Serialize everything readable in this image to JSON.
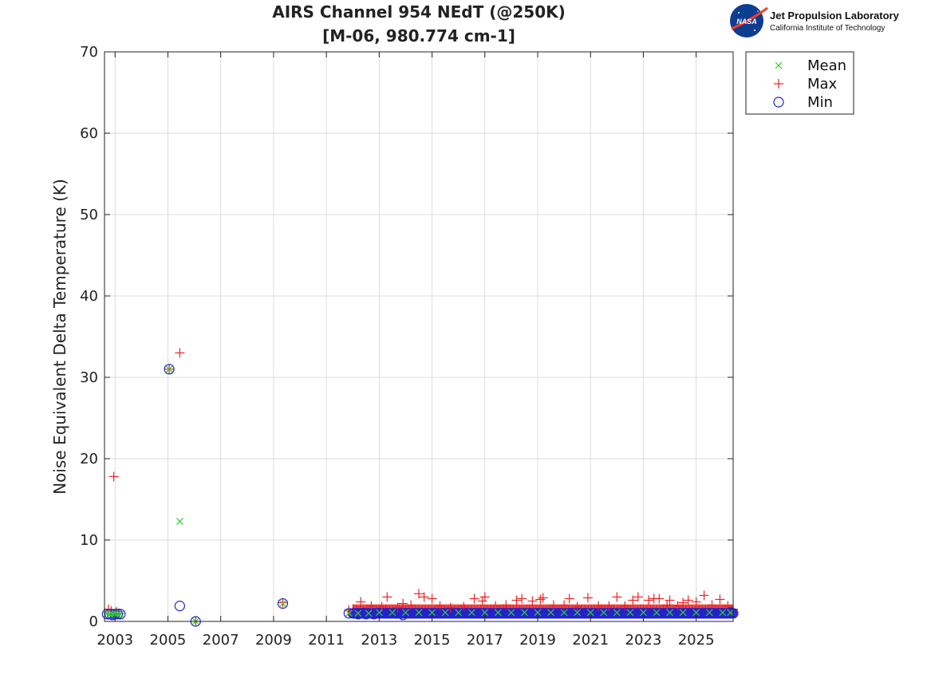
{
  "logo": {
    "nasa_mark": "NASA",
    "title": "Jet Propulsion Laboratory",
    "subtitle": "California Institute of Technology"
  },
  "chart_data": {
    "type": "scatter",
    "title": "AIRS Channel 954 NEdT (@250K)",
    "subtitle": "[M-06, 980.774 cm-1]",
    "xlabel": "",
    "ylabel": "Noise Equivalent Delta Temperature (K)",
    "xlim": [
      2002.6,
      2026.4
    ],
    "ylim": [
      0,
      70
    ],
    "xticks": [
      2003,
      2005,
      2007,
      2009,
      2011,
      2013,
      2015,
      2017,
      2019,
      2021,
      2023,
      2025
    ],
    "yticks": [
      0,
      10,
      20,
      30,
      40,
      50,
      60,
      70
    ],
    "grid": true,
    "legend_position": "outside-top-right",
    "series": [
      {
        "name": "Mean",
        "marker": "x",
        "color": "#33cc33",
        "points": [
          [
            2002.7,
            1.0
          ],
          [
            2002.8,
            0.9
          ],
          [
            2002.9,
            0.9
          ],
          [
            2003.0,
            1.0
          ],
          [
            2003.1,
            0.9
          ],
          [
            2003.2,
            0.9
          ],
          [
            2005.05,
            31.0
          ],
          [
            2005.45,
            12.3
          ],
          [
            2006.05,
            0.0
          ],
          [
            2009.35,
            2.2
          ],
          [
            2011.85,
            1.0
          ],
          [
            2012.2,
            1.0
          ],
          [
            2012.6,
            1.0
          ],
          [
            2013.0,
            1.1
          ],
          [
            2013.5,
            1.1
          ],
          [
            2014.0,
            1.1
          ],
          [
            2014.5,
            1.1
          ],
          [
            2015.0,
            1.1
          ],
          [
            2015.5,
            1.1
          ],
          [
            2016.0,
            1.1
          ],
          [
            2016.5,
            1.1
          ],
          [
            2017.0,
            1.1
          ],
          [
            2017.5,
            1.1
          ],
          [
            2018.0,
            1.1
          ],
          [
            2018.5,
            1.1
          ],
          [
            2019.0,
            1.1
          ],
          [
            2019.5,
            1.1
          ],
          [
            2020.0,
            1.1
          ],
          [
            2020.5,
            1.1
          ],
          [
            2021.0,
            1.1
          ],
          [
            2021.5,
            1.1
          ],
          [
            2022.0,
            1.1
          ],
          [
            2022.5,
            1.1
          ],
          [
            2023.0,
            1.1
          ],
          [
            2023.5,
            1.1
          ],
          [
            2024.0,
            1.1
          ],
          [
            2024.5,
            1.1
          ],
          [
            2025.0,
            1.1
          ],
          [
            2025.5,
            1.1
          ],
          [
            2026.0,
            1.1
          ],
          [
            2026.3,
            1.1
          ]
        ]
      },
      {
        "name": "Max",
        "marker": "+",
        "color": "#ee2222",
        "points": [
          [
            2002.75,
            1.5
          ],
          [
            2002.85,
            1.3
          ],
          [
            2002.95,
            17.8
          ],
          [
            2003.05,
            1.2
          ],
          [
            2003.15,
            1.0
          ],
          [
            2005.05,
            31.0
          ],
          [
            2005.45,
            33.0
          ],
          [
            2006.05,
            0.0
          ],
          [
            2009.35,
            2.3
          ],
          [
            2011.85,
            1.4
          ],
          [
            2012.3,
            2.4
          ],
          [
            2012.7,
            1.9
          ],
          [
            2013.1,
            1.8
          ],
          [
            2013.3,
            3.0
          ],
          [
            2013.7,
            1.7
          ],
          [
            2013.9,
            2.2
          ],
          [
            2014.2,
            2.0
          ],
          [
            2014.5,
            3.4
          ],
          [
            2014.7,
            3.0
          ],
          [
            2015.0,
            2.8
          ],
          [
            2015.3,
            1.9
          ],
          [
            2015.7,
            1.7
          ],
          [
            2016.2,
            1.8
          ],
          [
            2016.6,
            2.8
          ],
          [
            2016.9,
            2.5
          ],
          [
            2017.0,
            3.0
          ],
          [
            2017.4,
            1.9
          ],
          [
            2017.8,
            2.0
          ],
          [
            2018.2,
            2.6
          ],
          [
            2018.4,
            2.8
          ],
          [
            2018.8,
            2.5
          ],
          [
            2019.1,
            2.7
          ],
          [
            2019.2,
            2.9
          ],
          [
            2019.6,
            2.0
          ],
          [
            2020.0,
            2.0
          ],
          [
            2020.2,
            2.8
          ],
          [
            2020.5,
            1.8
          ],
          [
            2020.9,
            2.9
          ],
          [
            2021.3,
            1.9
          ],
          [
            2021.7,
            1.9
          ],
          [
            2022.0,
            3.0
          ],
          [
            2022.3,
            1.9
          ],
          [
            2022.6,
            2.6
          ],
          [
            2022.8,
            3.0
          ],
          [
            2023.2,
            2.6
          ],
          [
            2023.4,
            2.8
          ],
          [
            2023.6,
            2.8
          ],
          [
            2023.9,
            2.0
          ],
          [
            2024.0,
            2.6
          ],
          [
            2024.3,
            1.9
          ],
          [
            2024.5,
            2.3
          ],
          [
            2024.7,
            2.6
          ],
          [
            2025.0,
            2.4
          ],
          [
            2025.3,
            3.2
          ],
          [
            2025.6,
            2.0
          ],
          [
            2025.9,
            2.7
          ],
          [
            2026.2,
            1.9
          ]
        ]
      },
      {
        "name": "Min",
        "marker": "o",
        "color": "#2222cc",
        "points": [
          [
            2002.7,
            0.9
          ],
          [
            2002.8,
            0.9
          ],
          [
            2002.9,
            0.8
          ],
          [
            2003.0,
            0.9
          ],
          [
            2003.1,
            0.9
          ],
          [
            2003.2,
            0.9
          ],
          [
            2005.05,
            31.0
          ],
          [
            2005.45,
            1.9
          ],
          [
            2006.05,
            0.0
          ],
          [
            2009.35,
            2.2
          ],
          [
            2011.85,
            1.0
          ],
          [
            2012.2,
            0.9
          ],
          [
            2012.5,
            0.9
          ],
          [
            2012.8,
            0.9
          ],
          [
            2013.0,
            1.0
          ],
          [
            2013.3,
            1.0
          ],
          [
            2013.6,
            1.0
          ],
          [
            2013.9,
            0.8
          ],
          [
            2014.2,
            1.0
          ],
          [
            2014.5,
            1.0
          ],
          [
            2014.8,
            1.0
          ],
          [
            2015.1,
            1.0
          ],
          [
            2015.4,
            1.0
          ],
          [
            2015.7,
            1.0
          ],
          [
            2016.0,
            1.0
          ],
          [
            2016.3,
            1.0
          ],
          [
            2016.6,
            1.0
          ],
          [
            2016.9,
            1.0
          ],
          [
            2017.2,
            1.0
          ],
          [
            2017.5,
            1.0
          ],
          [
            2017.8,
            1.0
          ],
          [
            2018.1,
            1.0
          ],
          [
            2018.4,
            1.0
          ],
          [
            2018.7,
            1.0
          ],
          [
            2019.0,
            1.0
          ],
          [
            2019.3,
            1.0
          ],
          [
            2019.6,
            1.0
          ],
          [
            2019.9,
            1.0
          ],
          [
            2020.2,
            1.0
          ],
          [
            2020.5,
            1.0
          ],
          [
            2020.8,
            1.0
          ],
          [
            2021.1,
            1.0
          ],
          [
            2021.4,
            1.0
          ],
          [
            2021.7,
            1.0
          ],
          [
            2022.0,
            1.0
          ],
          [
            2022.3,
            1.0
          ],
          [
            2022.6,
            1.0
          ],
          [
            2022.9,
            1.0
          ],
          [
            2023.2,
            1.0
          ],
          [
            2023.5,
            1.0
          ],
          [
            2023.8,
            1.0
          ],
          [
            2024.1,
            1.0
          ],
          [
            2024.4,
            1.0
          ],
          [
            2024.7,
            1.0
          ],
          [
            2025.0,
            1.0
          ],
          [
            2025.3,
            1.0
          ],
          [
            2025.6,
            1.0
          ],
          [
            2025.9,
            1.0
          ],
          [
            2026.1,
            1.0
          ],
          [
            2026.3,
            1.1
          ]
        ],
        "dense_band": {
          "x": [
            2012.0,
            2026.4
          ],
          "y": 1.0
        }
      }
    ]
  }
}
